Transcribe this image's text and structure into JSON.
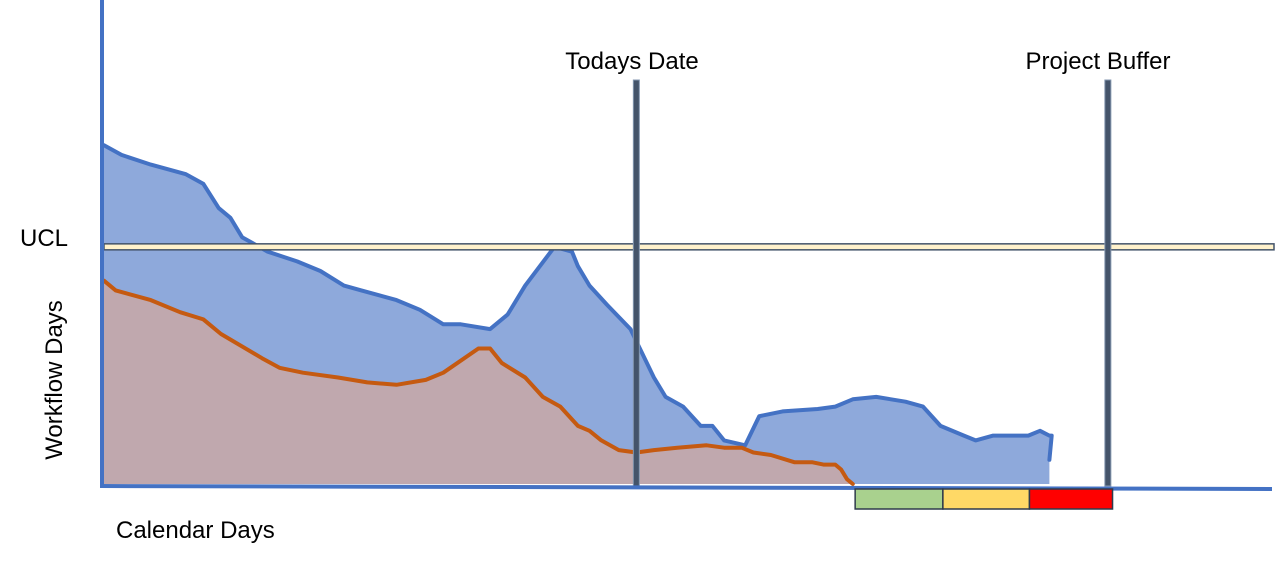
{
  "chart_data": {
    "type": "area",
    "xlabel": "Calendar Days",
    "ylabel": "Workflow Days",
    "xlim": [
      0,
      1000
    ],
    "ylim": [
      0,
      1000
    ],
    "ucl": {
      "label": "UCL",
      "value": 490
    },
    "markers": [
      {
        "label": "Todays Date",
        "x": 455
      },
      {
        "label": "Project Buffer",
        "x": 858
      }
    ],
    "buffer_zones": [
      {
        "zone": "green",
        "x_start": 642,
        "x_end": 717,
        "color": "#A9D18E"
      },
      {
        "zone": "yellow",
        "x_start": 717,
        "x_end": 791,
        "color": "#FFD966"
      },
      {
        "zone": "red",
        "x_start": 791,
        "x_end": 862,
        "color": "#FF0000"
      }
    ],
    "series": [
      {
        "color": "#4472C4",
        "fill": "#8EA9DB",
        "points": [
          [
            0,
            700
          ],
          [
            15,
            680
          ],
          [
            40,
            660
          ],
          [
            70,
            640
          ],
          [
            85,
            620
          ],
          [
            98,
            570
          ],
          [
            108,
            550
          ],
          [
            118,
            510
          ],
          [
            140,
            480
          ],
          [
            165,
            460
          ],
          [
            185,
            440
          ],
          [
            205,
            410
          ],
          [
            220,
            400
          ],
          [
            250,
            380
          ],
          [
            270,
            360
          ],
          [
            290,
            330
          ],
          [
            305,
            330
          ],
          [
            330,
            320
          ],
          [
            345,
            350
          ],
          [
            360,
            410
          ],
          [
            385,
            490
          ],
          [
            400,
            480
          ],
          [
            405,
            450
          ],
          [
            415,
            410
          ],
          [
            430,
            370
          ],
          [
            450,
            320
          ],
          [
            470,
            220
          ],
          [
            480,
            180
          ],
          [
            495,
            160
          ],
          [
            510,
            120
          ],
          [
            520,
            120
          ],
          [
            530,
            90
          ],
          [
            548,
            80
          ],
          [
            560,
            140
          ],
          [
            580,
            150
          ],
          [
            610,
            155
          ],
          [
            625,
            160
          ],
          [
            640,
            175
          ],
          [
            660,
            180
          ],
          [
            685,
            170
          ],
          [
            700,
            160
          ],
          [
            715,
            120
          ],
          [
            735,
            100
          ],
          [
            745,
            90
          ],
          [
            760,
            100
          ],
          [
            790,
            100
          ],
          [
            800,
            110
          ],
          [
            808,
            100
          ],
          [
            810,
            100
          ],
          [
            808,
            50
          ]
        ]
      },
      {
        "color": "#C55A11",
        "fill": "#C0A8AE",
        "points": [
          [
            0,
            420
          ],
          [
            10,
            400
          ],
          [
            40,
            380
          ],
          [
            65,
            355
          ],
          [
            85,
            340
          ],
          [
            90,
            330
          ],
          [
            100,
            310
          ],
          [
            135,
            260
          ],
          [
            150,
            240
          ],
          [
            170,
            230
          ],
          [
            200,
            220
          ],
          [
            225,
            210
          ],
          [
            250,
            205
          ],
          [
            275,
            215
          ],
          [
            290,
            230
          ],
          [
            320,
            280
          ],
          [
            330,
            280
          ],
          [
            340,
            250
          ],
          [
            360,
            220
          ],
          [
            375,
            180
          ],
          [
            390,
            160
          ],
          [
            405,
            120
          ],
          [
            415,
            110
          ],
          [
            425,
            90
          ],
          [
            440,
            70
          ],
          [
            455,
            65
          ],
          [
            470,
            70
          ],
          [
            490,
            75
          ],
          [
            515,
            80
          ],
          [
            530,
            75
          ],
          [
            545,
            75
          ],
          [
            555,
            65
          ],
          [
            570,
            60
          ],
          [
            590,
            45
          ],
          [
            605,
            45
          ],
          [
            615,
            40
          ],
          [
            625,
            40
          ],
          [
            630,
            30
          ],
          [
            635,
            10
          ],
          [
            640,
            0
          ]
        ]
      }
    ]
  }
}
